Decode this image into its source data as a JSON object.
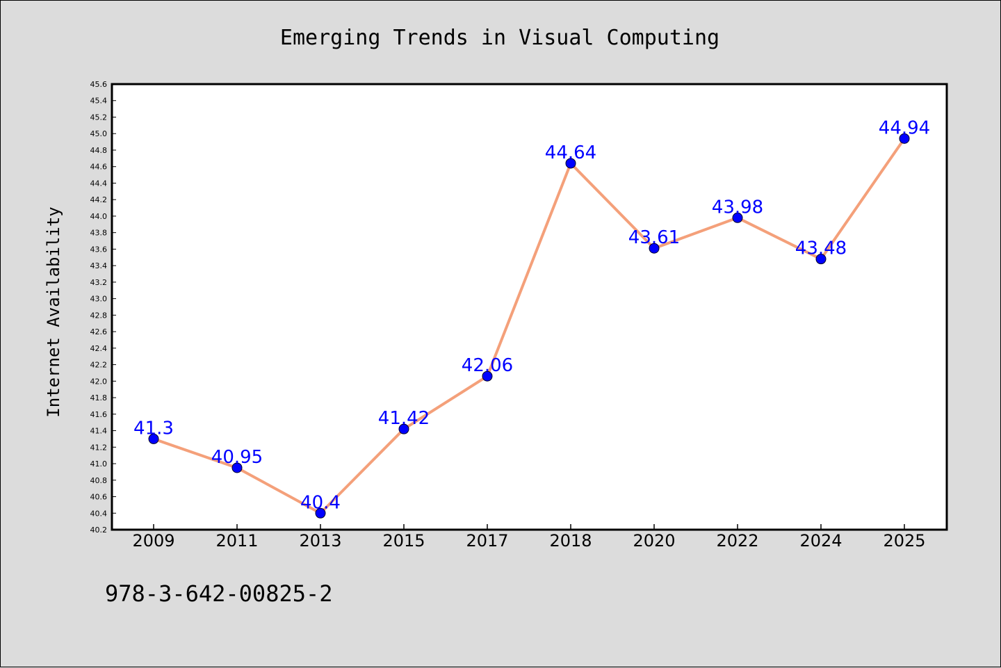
{
  "footer_text": "978-3-642-00825-2",
  "colors": {
    "background": "#dcdcdc",
    "plot_background": "#ffffff",
    "line": "#f4a07a",
    "marker": "#0000ff",
    "label": "#0000ff"
  },
  "chart_data": {
    "type": "line",
    "title": "Emerging Trends in Visual Computing",
    "xlabel": "",
    "ylabel": "Internet Availability",
    "categories": [
      "2009",
      "2011",
      "2013",
      "2015",
      "2017",
      "2018",
      "2020",
      "2022",
      "2024",
      "2025"
    ],
    "values": [
      41.3,
      40.95,
      40.4,
      41.42,
      42.06,
      44.64,
      43.61,
      43.98,
      43.48,
      44.94
    ],
    "data_labels": [
      "41.3",
      "40.95",
      "40.4",
      "41.42",
      "42.06",
      "44.64",
      "43.61",
      "43.98",
      "43.48",
      "44.94"
    ],
    "ylim": [
      40.2,
      45.6
    ],
    "yticks": [
      "40.2",
      "40.4",
      "40.6",
      "40.8",
      "41.0",
      "41.2",
      "41.4",
      "41.6",
      "41.8",
      "42.0",
      "42.2",
      "42.4",
      "42.6",
      "42.8",
      "43.0",
      "43.2",
      "43.4",
      "43.6",
      "43.8",
      "44.0",
      "44.2",
      "44.4",
      "44.6",
      "44.8",
      "45.0",
      "45.2",
      "45.4",
      "45.6"
    ],
    "grid": false,
    "legend": "none",
    "marker": "circle"
  }
}
